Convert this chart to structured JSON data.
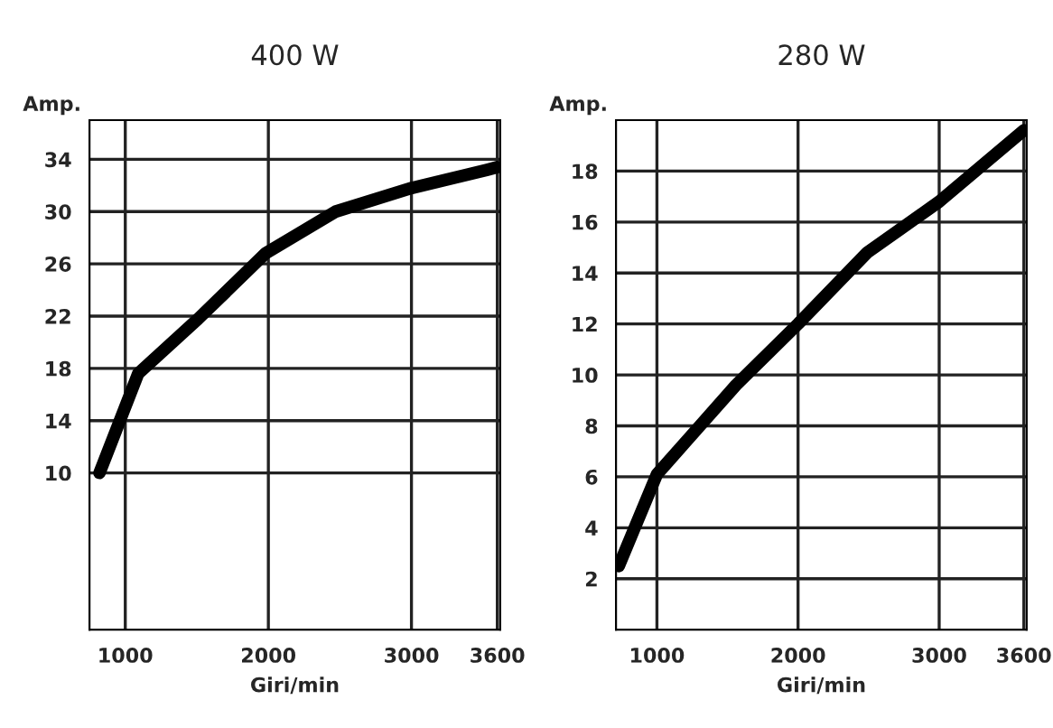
{
  "chart_data": [
    {
      "type": "line",
      "title": "400 W",
      "xlabel": "Giri/min",
      "ylabel": "Amp.",
      "x": [
        820,
        1090,
        1510,
        1980,
        2470,
        3000,
        3530,
        3600
      ],
      "series": [
        {
          "color": "#000000",
          "values": [
            10,
            17.6,
            21.8,
            26.8,
            30.0,
            31.8,
            33.2,
            33.4
          ]
        }
      ],
      "xlim": [
        750,
        3620
      ],
      "xticks": [
        1000,
        2000,
        3000,
        3600
      ],
      "ylim": [
        -2,
        37
      ],
      "yticks": [
        10,
        14,
        18,
        22,
        26,
        30,
        34
      ],
      "grid": true,
      "legend": false,
      "marker": "none",
      "line_style": "solid"
    },
    {
      "type": "line",
      "title": "280 W",
      "xlabel": "Giri/min",
      "ylabel": "Amp.",
      "x": [
        730,
        1000,
        1560,
        2000,
        2490,
        3000,
        3600
      ],
      "series": [
        {
          "color": "#000000",
          "values": [
            2.5,
            6.1,
            9.6,
            12.0,
            14.8,
            16.8,
            19.6
          ]
        }
      ],
      "xlim": [
        710,
        3620
      ],
      "xticks": [
        1000,
        2000,
        3000,
        3600
      ],
      "ylim": [
        0,
        20
      ],
      "yticks": [
        2,
        4,
        6,
        8,
        10,
        12,
        14,
        16,
        18
      ],
      "grid": true,
      "legend": false,
      "marker": "none",
      "line_style": "solid"
    }
  ]
}
